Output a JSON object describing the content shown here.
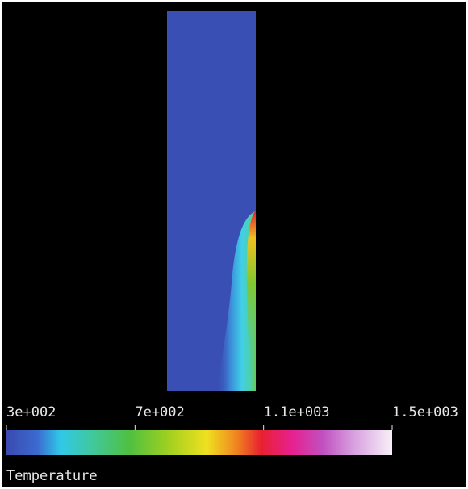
{
  "colorbar": {
    "title": "Temperature",
    "lim": [
      300,
      1500
    ],
    "ticks": [
      {
        "value": 300,
        "label": "3e+002"
      },
      {
        "value": 700,
        "label": "7e+002"
      },
      {
        "value": 1100,
        "label": "1.1e+003"
      },
      {
        "value": 1500,
        "label": "1.5e+003"
      }
    ]
  }
}
